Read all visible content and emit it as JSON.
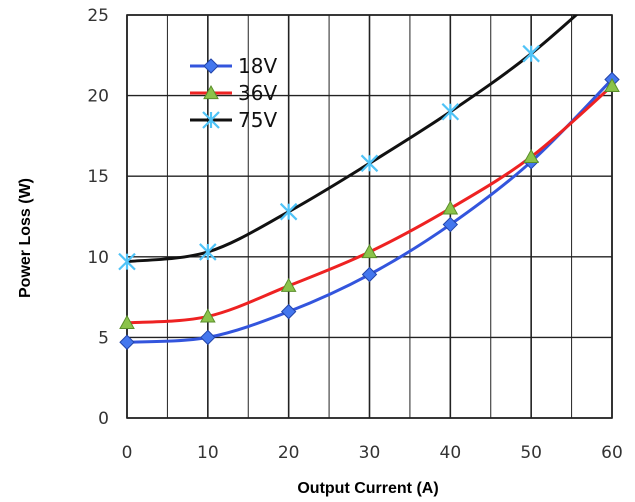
{
  "chart_data": {
    "type": "line",
    "title": "",
    "xlabel": "Output Current (A)",
    "ylabel": "Power Loss (W)",
    "xlim": [
      0,
      60
    ],
    "ylim": [
      0,
      25
    ],
    "xticks": [
      "0",
      "10",
      "20",
      "30",
      "40",
      "50",
      "60"
    ],
    "yticks": [
      "0",
      "5",
      "10",
      "15",
      "20",
      "25"
    ],
    "grid": true,
    "legend_position": "top-left",
    "x": [
      0,
      10,
      20,
      30,
      40,
      50,
      60
    ],
    "series": [
      {
        "name": "18V",
        "color": "#3355dd",
        "marker": "diamond",
        "values": [
          4.7,
          5.0,
          6.6,
          8.9,
          12.0,
          15.9,
          21.0
        ]
      },
      {
        "name": "36V",
        "color": "#ee2222",
        "marker": "triangle",
        "values": [
          5.9,
          6.3,
          8.2,
          10.3,
          13.0,
          16.2,
          20.6
        ]
      },
      {
        "name": "75V",
        "color": "#111111",
        "marker": "asterisk",
        "values": [
          9.7,
          10.3,
          12.8,
          15.8,
          19.0,
          22.6,
          27.0
        ]
      }
    ]
  }
}
